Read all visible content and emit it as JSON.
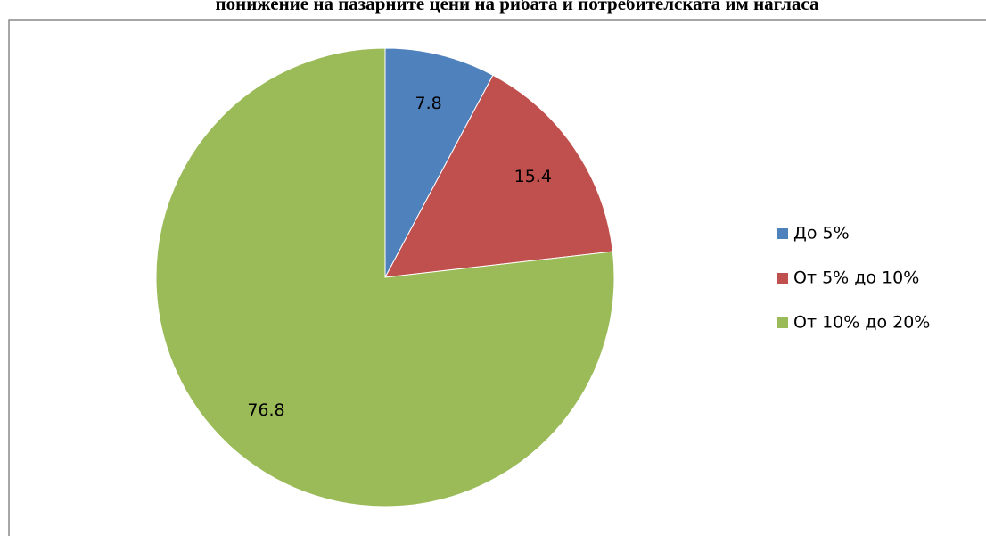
{
  "chart_data": {
    "type": "pie",
    "title": "понижение на пазарните цени на рибата и потребителската им нагласа",
    "categories": [
      "До 5%",
      "От 5% до 10%",
      "От 10% до 20%"
    ],
    "values": [
      7.8,
      15.4,
      76.8
    ],
    "colors": [
      "#4f81bd",
      "#c0504d",
      "#9bbb59"
    ],
    "legend": "right"
  }
}
